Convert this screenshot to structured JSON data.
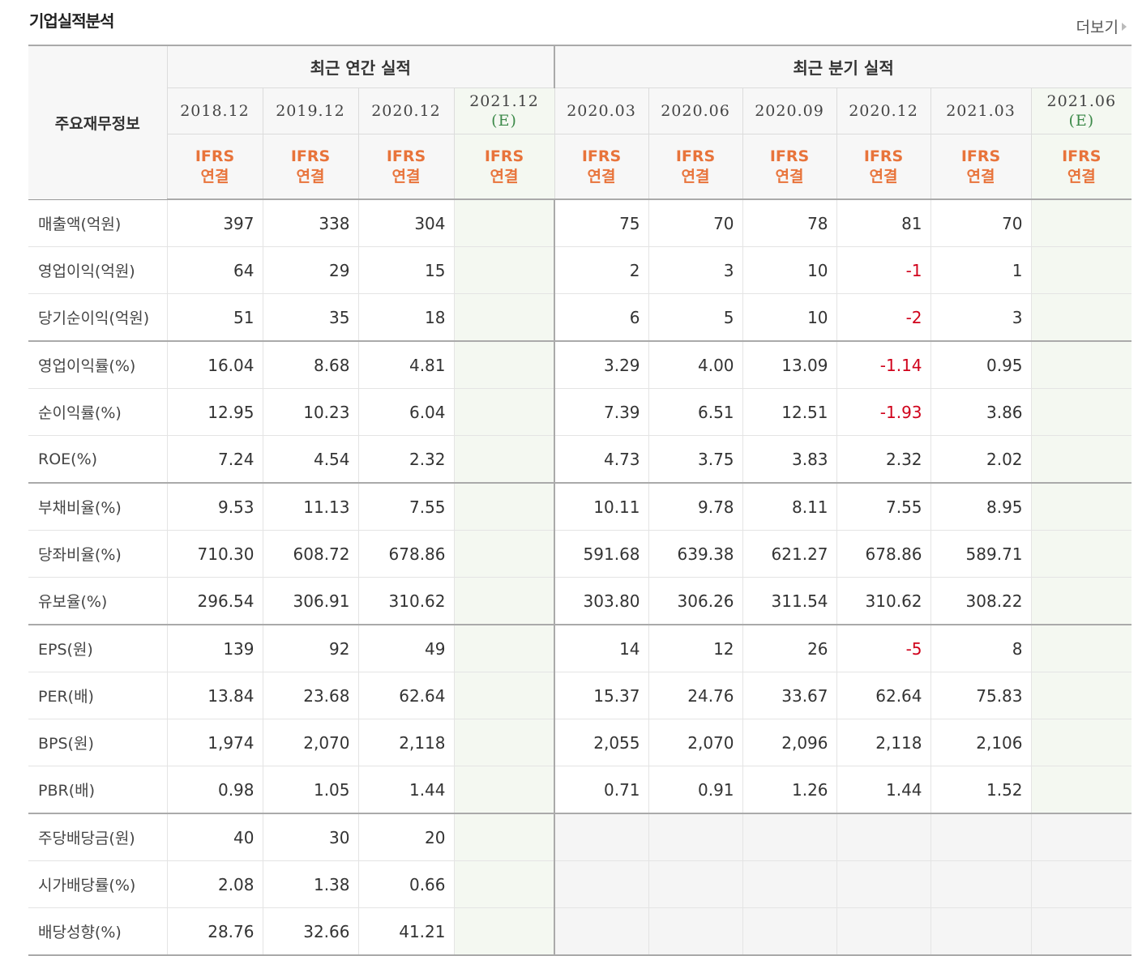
{
  "header": {
    "title": "기업실적분석",
    "more_label": "더보기"
  },
  "table": {
    "corner_label": "주요재무정보",
    "groups": {
      "annual": "최근 연간 실적",
      "quarterly": "최근 분기 실적"
    },
    "annual_periods": [
      "2018.12",
      "2019.12",
      "2020.12",
      "2021.12"
    ],
    "quarter_periods": [
      "2020.03",
      "2020.06",
      "2020.09",
      "2020.12",
      "2021.03",
      "2021.06"
    ],
    "estimate_mark": "(E)",
    "ifrs_line1": "IFRS",
    "ifrs_line2": "연결",
    "rows": [
      {
        "label": "매출액(억원)",
        "annual": [
          "397",
          "338",
          "304",
          ""
        ],
        "quarter": [
          "75",
          "70",
          "78",
          "81",
          "70",
          ""
        ]
      },
      {
        "label": "영업이익(억원)",
        "annual": [
          "64",
          "29",
          "15",
          ""
        ],
        "quarter": [
          "2",
          "3",
          "10",
          "-1",
          "1",
          ""
        ]
      },
      {
        "label": "당기순이익(억원)",
        "annual": [
          "51",
          "35",
          "18",
          ""
        ],
        "quarter": [
          "6",
          "5",
          "10",
          "-2",
          "3",
          ""
        ]
      },
      {
        "label": "영업이익률(%)",
        "annual": [
          "16.04",
          "8.68",
          "4.81",
          ""
        ],
        "quarter": [
          "3.29",
          "4.00",
          "13.09",
          "-1.14",
          "0.95",
          ""
        ]
      },
      {
        "label": "순이익률(%)",
        "annual": [
          "12.95",
          "10.23",
          "6.04",
          ""
        ],
        "quarter": [
          "7.39",
          "6.51",
          "12.51",
          "-1.93",
          "3.86",
          ""
        ]
      },
      {
        "label": "ROE(%)",
        "annual": [
          "7.24",
          "4.54",
          "2.32",
          ""
        ],
        "quarter": [
          "4.73",
          "3.75",
          "3.83",
          "2.32",
          "2.02",
          ""
        ]
      },
      {
        "label": "부채비율(%)",
        "annual": [
          "9.53",
          "11.13",
          "7.55",
          ""
        ],
        "quarter": [
          "10.11",
          "9.78",
          "8.11",
          "7.55",
          "8.95",
          ""
        ]
      },
      {
        "label": "당좌비율(%)",
        "annual": [
          "710.30",
          "608.72",
          "678.86",
          ""
        ],
        "quarter": [
          "591.68",
          "639.38",
          "621.27",
          "678.86",
          "589.71",
          ""
        ]
      },
      {
        "label": "유보율(%)",
        "annual": [
          "296.54",
          "306.91",
          "310.62",
          ""
        ],
        "quarter": [
          "303.80",
          "306.26",
          "311.54",
          "310.62",
          "308.22",
          ""
        ]
      },
      {
        "label": "EPS(원)",
        "annual": [
          "139",
          "92",
          "49",
          ""
        ],
        "quarter": [
          "14",
          "12",
          "26",
          "-5",
          "8",
          ""
        ]
      },
      {
        "label": "PER(배)",
        "annual": [
          "13.84",
          "23.68",
          "62.64",
          ""
        ],
        "quarter": [
          "15.37",
          "24.76",
          "33.67",
          "62.64",
          "75.83",
          ""
        ]
      },
      {
        "label": "BPS(원)",
        "annual": [
          "1,974",
          "2,070",
          "2,118",
          ""
        ],
        "quarter": [
          "2,055",
          "2,070",
          "2,096",
          "2,118",
          "2,106",
          ""
        ]
      },
      {
        "label": "PBR(배)",
        "annual": [
          "0.98",
          "1.05",
          "1.44",
          ""
        ],
        "quarter": [
          "0.71",
          "0.91",
          "1.26",
          "1.44",
          "1.52",
          ""
        ]
      },
      {
        "label": "주당배당금(원)",
        "annual": [
          "40",
          "30",
          "20",
          ""
        ],
        "quarter": null
      },
      {
        "label": "시가배당률(%)",
        "annual": [
          "2.08",
          "1.38",
          "0.66",
          ""
        ],
        "quarter": null
      },
      {
        "label": "배당성향(%)",
        "annual": [
          "28.76",
          "32.66",
          "41.21",
          ""
        ],
        "quarter": null
      }
    ],
    "group_end_rows": [
      2,
      5,
      8,
      12
    ]
  }
}
